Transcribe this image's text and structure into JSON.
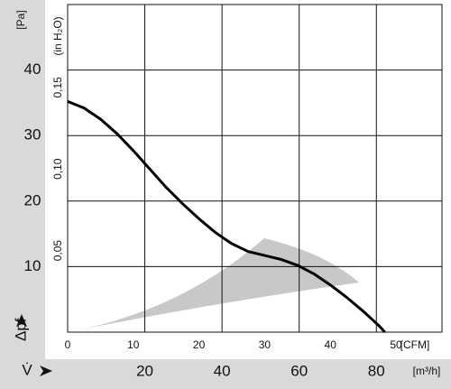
{
  "chart_data": {
    "type": "line",
    "x": [
      0,
      2.5,
      5,
      7.5,
      10,
      12.5,
      15,
      17.5,
      20,
      22.5,
      25,
      27.5,
      30,
      32.5,
      35,
      37.5,
      40,
      42.5,
      45,
      47.5,
      48.3
    ],
    "values": [
      35.2,
      34.2,
      32.5,
      30.3,
      27.7,
      24.9,
      22.1,
      19.6,
      17.3,
      15.2,
      13.5,
      12.3,
      11.7,
      11.1,
      10.2,
      8.9,
      7.2,
      5.3,
      3.2,
      0.9,
      0
    ],
    "color": "#000000",
    "xlim": [
      0,
      57
    ],
    "xticks": [
      0,
      10,
      20,
      30,
      40,
      50
    ],
    "x_label": "[CFM]",
    "x2lim": [
      0,
      97
    ],
    "x2ticks": [
      20,
      40,
      60,
      80
    ],
    "x2_label": "[m³/h]",
    "x_symbol": "V̇",
    "ylim": [
      0,
      50
    ],
    "yticks": [
      10,
      20,
      30,
      40
    ],
    "y_label": "[Pa]",
    "y_symbol": "Δpf",
    "y2lim": [
      0,
      0.2008
    ],
    "y2ticks": [
      {
        "value": 0.05,
        "label": "0,05"
      },
      {
        "value": 0.1,
        "label": "0,10"
      },
      {
        "value": 0.15,
        "label": "0,15"
      }
    ],
    "y2_label": "(in H₂O)",
    "grid": true
  }
}
